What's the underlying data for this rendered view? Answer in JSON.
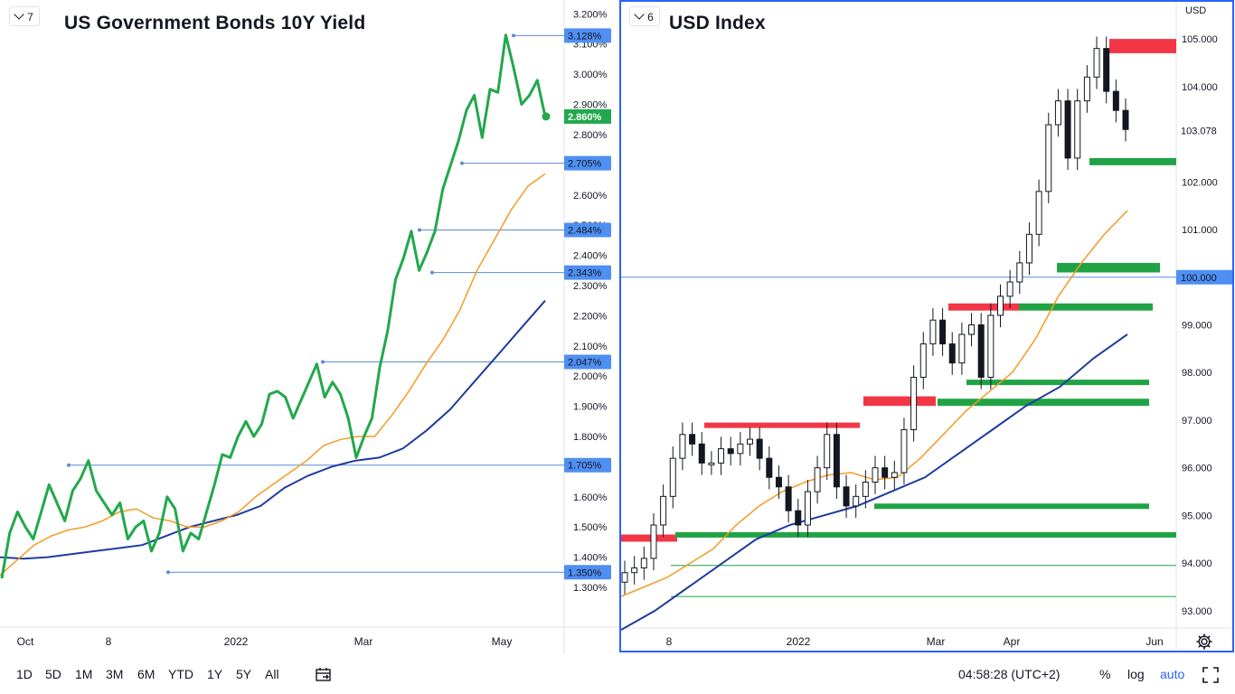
{
  "left_chart": {
    "badge": "7",
    "title": "US Government Bonds 10Y Yield",
    "y_ticks": [
      "3.200%",
      "3.100%",
      "3.000%",
      "2.900%",
      "2.800%",
      "2.600%",
      "2.500%",
      "2.400%",
      "2.300%",
      "2.200%",
      "2.100%",
      "2.000%",
      "1.900%",
      "1.800%",
      "1.600%",
      "1.500%",
      "1.400%",
      "1.300%"
    ],
    "x_ticks": [
      "Oct",
      "8",
      "2022",
      "Mar",
      "May"
    ],
    "level_labels": [
      "3.128%",
      "2.705%",
      "2.484%",
      "2.343%",
      "2.047%",
      "1.705%",
      "1.350%"
    ],
    "last_value_label": "2.860%"
  },
  "right_chart": {
    "badge": "6",
    "title": "USD Index",
    "currency": "USD",
    "y_ticks": [
      "105.000",
      "104.000",
      "102.000",
      "101.000",
      "99.000",
      "98.000",
      "97.000",
      "96.000",
      "95.000",
      "94.000",
      "93.000"
    ],
    "x_ticks": [
      "8",
      "2022",
      "Mar",
      "Apr",
      "Jun"
    ],
    "last_value_label": "103.078",
    "level_label": "100.000"
  },
  "bottom_toolbar": {
    "ranges": [
      "1D",
      "5D",
      "1M",
      "3M",
      "6M",
      "YTD",
      "1Y",
      "5Y",
      "All"
    ],
    "clock": "04:58:28 (UTC+2)",
    "percent": "%",
    "log": "log",
    "auto": "auto"
  },
  "colors": {
    "price_line": "#22a84b",
    "ma_fast": "#f59a23",
    "ma_slow": "#1f3c9c",
    "level_line": "#5b8bd8",
    "label_bg": "#4f8ff2",
    "resistance_zone": "#f23645",
    "support_zone": "#1fa345",
    "accent": "#2962ff"
  },
  "chart_data": [
    {
      "type": "line",
      "title": "US Government Bonds 10Y Yield",
      "ylim": [
        1.27,
        3.21
      ],
      "y_unit": "%",
      "x_axis_ticks": [
        "Oct",
        "8",
        "2022",
        "Mar",
        "May"
      ],
      "series": [
        {
          "values": [
            1.33,
            1.48,
            1.55,
            1.5,
            1.46,
            1.55,
            1.64,
            1.58,
            1.52,
            1.62,
            1.66,
            1.72,
            1.62,
            1.58,
            1.54,
            1.58,
            1.46,
            1.5,
            1.52,
            1.42,
            1.48,
            1.6,
            1.56,
            1.42,
            1.48,
            1.46,
            1.55,
            1.64,
            1.74,
            1.73,
            1.8,
            1.85,
            1.8,
            1.84,
            1.94,
            1.95,
            1.93,
            1.86,
            1.92,
            1.98,
            2.04,
            1.93,
            1.98,
            1.94,
            1.86,
            1.73,
            1.8,
            1.86,
            2.03,
            2.15,
            2.32,
            2.39,
            2.48,
            2.35,
            2.41,
            2.48,
            2.62,
            2.7,
            2.78,
            2.88,
            2.93,
            2.79,
            2.95,
            2.94,
            3.13,
            3.02,
            2.9,
            2.93,
            2.98,
            2.86
          ]
        },
        {
          "values": [
            1.34,
            1.39,
            1.44,
            1.47,
            1.49,
            1.5,
            1.52,
            1.55,
            1.56,
            1.53,
            1.52,
            1.5,
            1.5,
            1.52,
            1.55,
            1.6,
            1.64,
            1.68,
            1.72,
            1.77,
            1.79,
            1.8,
            1.8,
            1.87,
            1.95,
            2.04,
            2.12,
            2.22,
            2.35,
            2.45,
            2.55,
            2.63,
            2.67
          ]
        },
        {
          "values": [
            1.4,
            1.395,
            1.4,
            1.41,
            1.42,
            1.43,
            1.44,
            1.47,
            1.5,
            1.52,
            1.54,
            1.57,
            1.63,
            1.67,
            1.7,
            1.72,
            1.73,
            1.76,
            1.82,
            1.89,
            1.98,
            2.07,
            2.16,
            2.25
          ]
        }
      ],
      "levels": [
        3.128,
        2.705,
        2.484,
        2.343,
        2.047,
        1.705,
        1.35
      ],
      "last_value": 2.86
    },
    {
      "type": "candlestick",
      "title": "USD Index",
      "ylim": [
        92.6,
        105.4
      ],
      "x_axis_ticks": [
        "8",
        "2022",
        "Mar",
        "Apr",
        "Jun"
      ],
      "series": [
        {
          "values": [
            93.8,
            93.9,
            94.1,
            94.8,
            95.4,
            96.2,
            96.7,
            96.5,
            96.1,
            96.1,
            96.4,
            96.3,
            96.5,
            96.6,
            96.2,
            95.8,
            95.6,
            95.1,
            94.8,
            95.5,
            96.0,
            96.7,
            95.6,
            95.2,
            95.4,
            95.7,
            96.0,
            95.8,
            95.9,
            96.8,
            97.9,
            98.6,
            99.1,
            98.6,
            98.2,
            98.8,
            99.0,
            97.9,
            99.2,
            99.6,
            99.9,
            100.3,
            100.9,
            101.8,
            103.2,
            103.7,
            102.5,
            103.7,
            104.2,
            104.8,
            103.9,
            103.5,
            103.1
          ]
        },
        {
          "values": [
            93.3,
            93.5,
            93.7,
            94.0,
            94.3,
            94.8,
            95.2,
            95.5,
            95.7,
            95.85,
            95.9,
            95.75,
            95.8,
            96.2,
            96.7,
            97.2,
            97.6,
            98.0,
            98.7,
            99.6,
            100.3,
            100.9,
            101.4
          ]
        },
        {
          "values": [
            92.6,
            93.0,
            93.5,
            94.0,
            94.5,
            94.8,
            95.0,
            95.2,
            95.5,
            95.8,
            96.3,
            96.8,
            97.3,
            97.7,
            98.3,
            98.8
          ]
        }
      ],
      "resistance_zones": [
        [
          94.45,
          94.6
        ],
        [
          96.85,
          96.95
        ],
        [
          97.3,
          97.5
        ],
        [
          99.3,
          99.45
        ],
        [
          104.7,
          105.0
        ]
      ],
      "support_zones": [
        [
          94.55,
          94.65
        ],
        [
          95.15,
          95.25
        ],
        [
          97.3,
          97.45
        ],
        [
          97.75,
          97.85
        ],
        [
          99.3,
          99.45
        ],
        [
          100.1,
          100.3
        ],
        [
          102.35,
          102.5
        ]
      ],
      "horizontal_levels": [
        100.0,
        93.95,
        93.3
      ],
      "last_value": 103.078
    }
  ]
}
